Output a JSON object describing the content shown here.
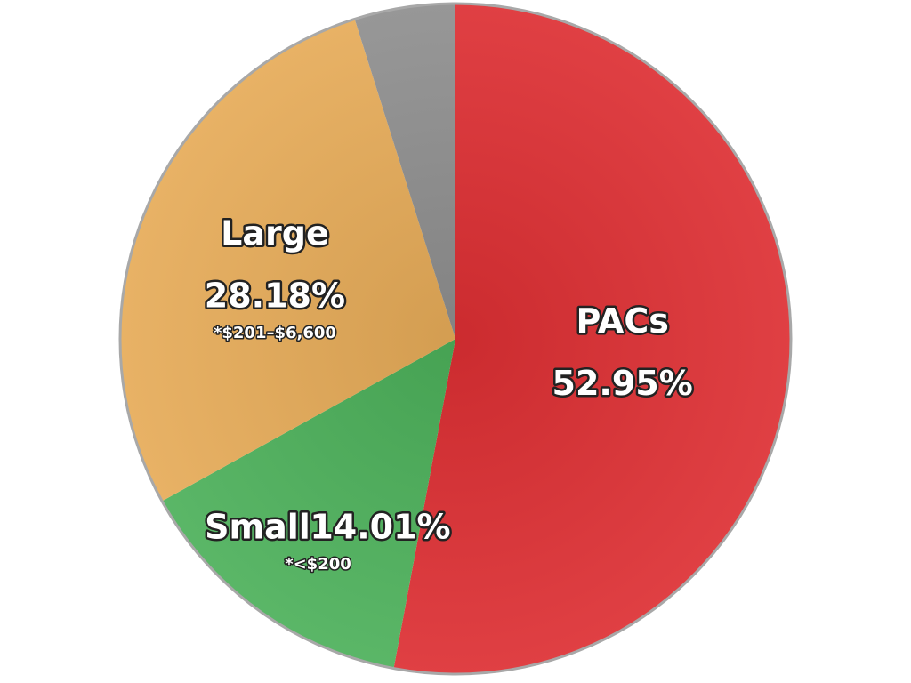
{
  "chart_data": {
    "type": "pie",
    "categories": [
      "PACs",
      "Small",
      "Large",
      null
    ],
    "values": [
      52.95,
      14.01,
      28.18,
      4.86
    ],
    "value_labels": [
      "52.95%",
      "14.01%",
      "28.18%",
      null
    ],
    "notes": [
      null,
      "*<$200",
      "*$201–$6,600",
      null
    ],
    "colors": [
      "#dd2f33",
      "#4cb05a",
      "#e6ab58",
      "#8e8e8e"
    ]
  }
}
